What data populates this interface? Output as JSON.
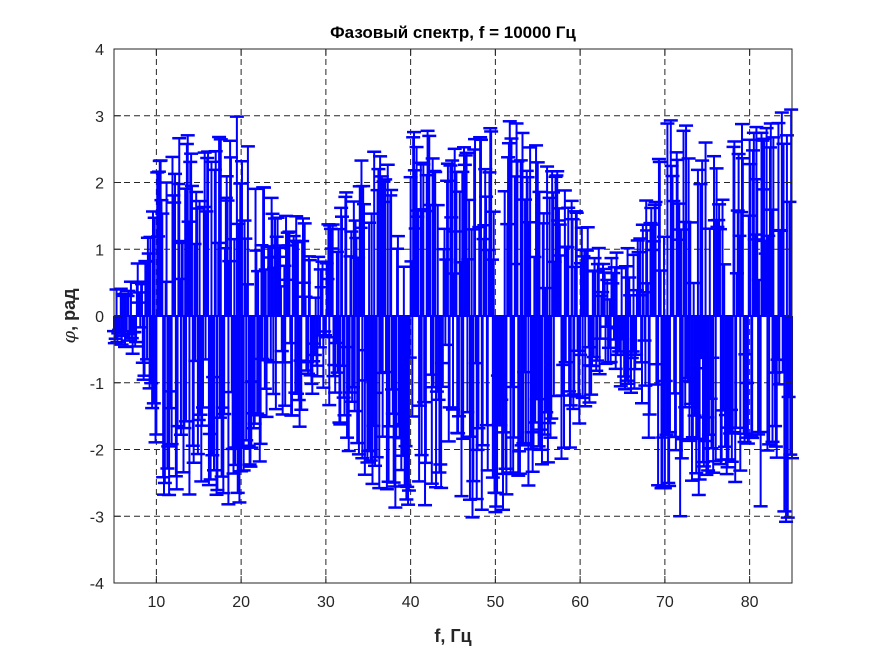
{
  "chart_data": {
    "type": "errorbar",
    "title": "Фазовый спектр, f = 10000 Гц",
    "xlabel": "f, Гц",
    "ylabel_symbol": "φ",
    "ylabel_text": ", рад",
    "xlim": [
      5,
      85
    ],
    "ylim": [
      -4,
      4
    ],
    "xticks": [
      10,
      20,
      30,
      40,
      50,
      60,
      70,
      80
    ],
    "yticks": [
      -4,
      -3,
      -2,
      -1,
      0,
      1,
      2,
      3,
      4
    ],
    "grid": true,
    "color": "#0000ff",
    "x_start": 5,
    "x_step": 0.1,
    "envelope": [
      [
        5,
        0.4
      ],
      [
        7,
        0.55
      ],
      [
        9,
        1.2
      ],
      [
        10.5,
        2.6
      ],
      [
        12,
        2.9
      ],
      [
        14,
        2.7
      ],
      [
        16,
        2.5
      ],
      [
        18,
        2.95
      ],
      [
        19.5,
        3.0
      ],
      [
        21,
        2.5
      ],
      [
        23,
        2.0
      ],
      [
        25,
        1.5
      ],
      [
        27,
        1.7
      ],
      [
        29,
        1.0
      ],
      [
        31,
        1.6
      ],
      [
        33,
        2.1
      ],
      [
        35,
        2.5
      ],
      [
        37,
        2.8
      ],
      [
        39,
        3.0
      ],
      [
        41,
        3.0
      ],
      [
        43,
        2.8
      ],
      [
        45,
        2.6
      ],
      [
        47,
        3.1
      ],
      [
        49,
        3.0
      ],
      [
        51,
        3.0
      ],
      [
        53,
        2.9
      ],
      [
        55,
        2.6
      ],
      [
        57,
        2.3
      ],
      [
        59,
        2.0
      ],
      [
        61,
        1.4
      ],
      [
        63,
        0.8
      ],
      [
        65,
        1.1
      ],
      [
        67,
        1.3
      ],
      [
        69,
        2.5
      ],
      [
        71,
        3.1
      ],
      [
        73,
        3.0
      ],
      [
        75,
        2.7
      ],
      [
        77,
        2.4
      ],
      [
        79,
        3.0
      ],
      [
        81,
        3.05
      ],
      [
        83,
        3.1
      ],
      [
        85,
        3.1
      ]
    ]
  }
}
